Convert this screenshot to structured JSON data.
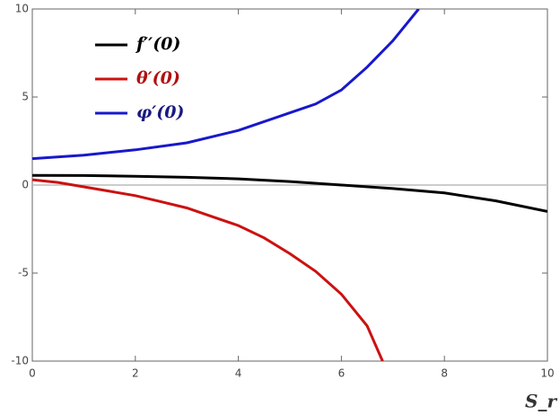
{
  "chart_data": {
    "type": "line",
    "x_label": "S_r",
    "xlim": [
      0,
      10
    ],
    "xticks": [
      0,
      2,
      4,
      6,
      8,
      10
    ],
    "ylim": [
      -10,
      10
    ],
    "yticks": [
      -10,
      -5,
      0,
      5,
      10
    ],
    "zero_line": true,
    "legend": "upper left",
    "series": [
      {
        "name": "f′′(0)",
        "color": "#000000",
        "label_color": "#000000",
        "x": [
          0,
          1,
          2,
          3,
          4,
          5,
          6,
          7,
          8,
          9,
          10
        ],
        "values": [
          0.55,
          0.54,
          0.5,
          0.44,
          0.35,
          0.2,
          0.0,
          -0.2,
          -0.45,
          -0.9,
          -1.5
        ]
      },
      {
        "name": "θ′(0)",
        "color": "#cc1111",
        "label_color": "#b01010",
        "x": [
          0,
          0.5,
          1,
          1.5,
          2,
          2.5,
          3,
          3.5,
          4,
          4.5,
          5,
          5.5,
          6,
          6.5,
          6.8
        ],
        "values": [
          0.3,
          0.15,
          -0.1,
          -0.35,
          -0.6,
          -0.95,
          -1.3,
          -1.8,
          -2.3,
          -3.0,
          -3.9,
          -4.9,
          -6.2,
          -8.0,
          -10
        ]
      },
      {
        "name": "φ′(0)",
        "color": "#1818cc",
        "label_color": "#1a1a80",
        "x": [
          0,
          1,
          2,
          3,
          4,
          5,
          5.5,
          6,
          6.5,
          7,
          7.5
        ],
        "values": [
          1.5,
          1.7,
          2.0,
          2.4,
          3.1,
          4.1,
          4.6,
          5.4,
          6.7,
          8.2,
          10
        ]
      }
    ]
  }
}
